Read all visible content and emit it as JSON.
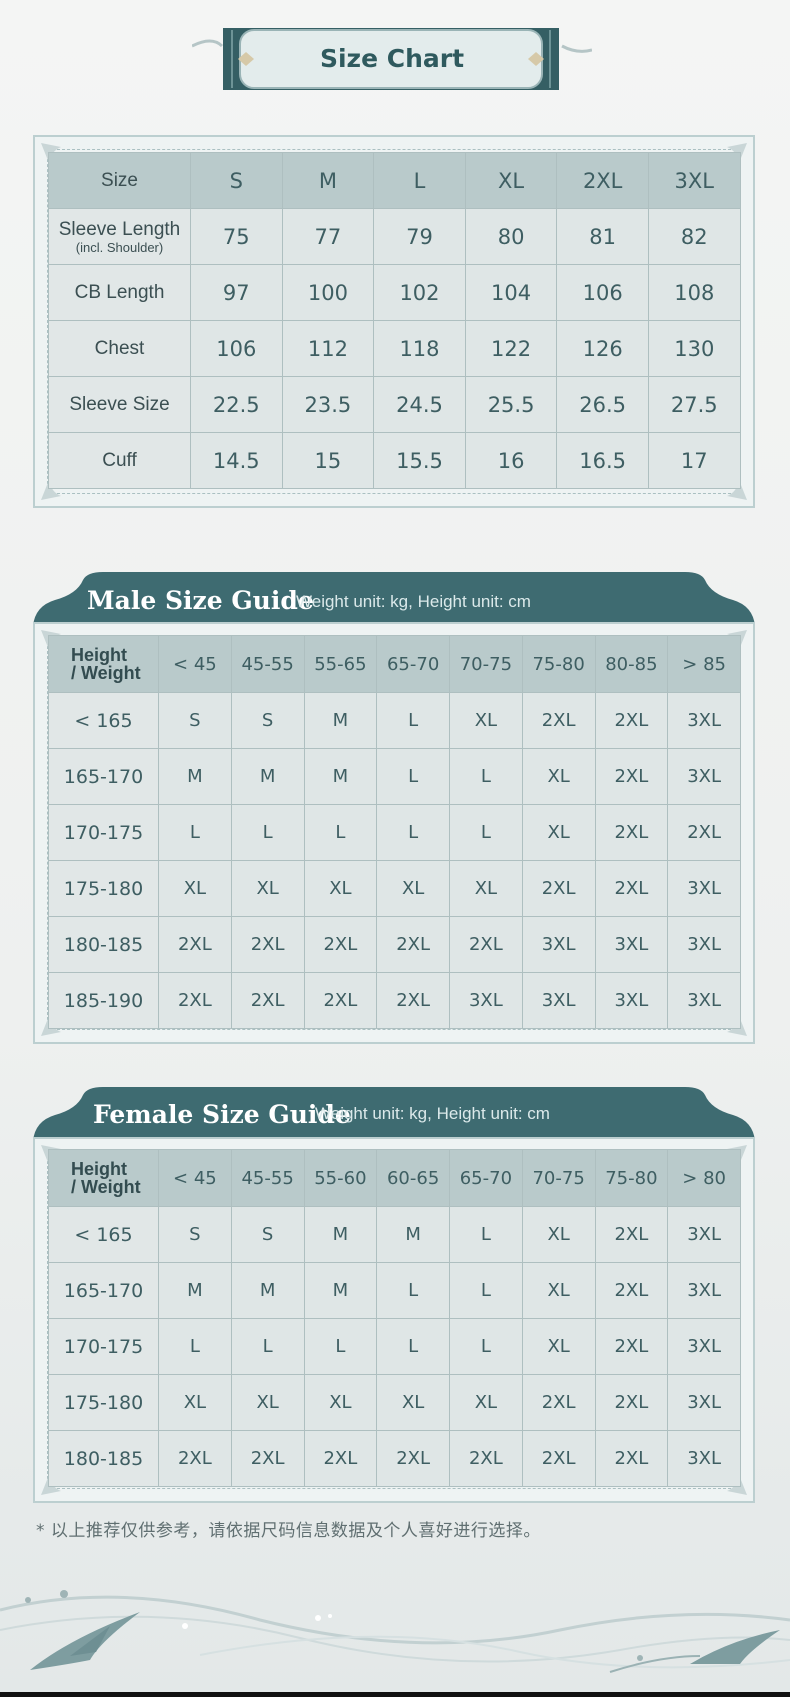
{
  "size_chart": {
    "title": "Size Chart",
    "header_label": "Size",
    "sizes": [
      "S",
      "M",
      "L",
      "XL",
      "2XL",
      "3XL"
    ],
    "rows": [
      {
        "label": "Sleeve Length",
        "note": "(incl. Shoulder)",
        "values": [
          "75",
          "77",
          "79",
          "80",
          "81",
          "82"
        ]
      },
      {
        "label": "CB Length",
        "values": [
          "97",
          "100",
          "102",
          "104",
          "106",
          "108"
        ]
      },
      {
        "label": "Chest",
        "values": [
          "106",
          "112",
          "118",
          "122",
          "126",
          "130"
        ]
      },
      {
        "label": "Sleeve Size",
        "values": [
          "22.5",
          "23.5",
          "24.5",
          "25.5",
          "26.5",
          "27.5"
        ]
      },
      {
        "label": "Cuff",
        "values": [
          "14.5",
          "15",
          "15.5",
          "16",
          "16.5",
          "17"
        ]
      }
    ]
  },
  "male_guide": {
    "title": "Male Size Guide",
    "subtitle": "Weight unit: kg, Height unit: cm",
    "corner_line1": "Height",
    "corner_line2": "/  Weight",
    "weights": [
      "< 45",
      "45-55",
      "55-65",
      "65-70",
      "70-75",
      "75-80",
      "80-85",
      "> 85"
    ],
    "rows": [
      {
        "height": "< 165",
        "values": [
          "S",
          "S",
          "M",
          "L",
          "XL",
          "2XL",
          "2XL",
          "3XL"
        ]
      },
      {
        "height": "165-170",
        "values": [
          "M",
          "M",
          "M",
          "L",
          "L",
          "XL",
          "2XL",
          "3XL"
        ]
      },
      {
        "height": "170-175",
        "values": [
          "L",
          "L",
          "L",
          "L",
          "L",
          "XL",
          "2XL",
          "2XL"
        ]
      },
      {
        "height": "175-180",
        "values": [
          "XL",
          "XL",
          "XL",
          "XL",
          "XL",
          "2XL",
          "2XL",
          "3XL"
        ]
      },
      {
        "height": "180-185",
        "values": [
          "2XL",
          "2XL",
          "2XL",
          "2XL",
          "2XL",
          "3XL",
          "3XL",
          "3XL"
        ]
      },
      {
        "height": "185-190",
        "values": [
          "2XL",
          "2XL",
          "2XL",
          "2XL",
          "3XL",
          "3XL",
          "3XL",
          "3XL"
        ]
      }
    ]
  },
  "female_guide": {
    "title": "Female Size Guide",
    "subtitle": "Weight unit: kg, Height unit: cm",
    "corner_line1": "Height",
    "corner_line2": "/  Weight",
    "weights": [
      "< 45",
      "45-55",
      "55-60",
      "60-65",
      "65-70",
      "70-75",
      "75-80",
      "> 80"
    ],
    "rows": [
      {
        "height": "< 165",
        "values": [
          "S",
          "S",
          "M",
          "M",
          "L",
          "XL",
          "2XL",
          "3XL"
        ]
      },
      {
        "height": "165-170",
        "values": [
          "M",
          "M",
          "M",
          "L",
          "L",
          "XL",
          "2XL",
          "3XL"
        ]
      },
      {
        "height": "170-175",
        "values": [
          "L",
          "L",
          "L",
          "L",
          "L",
          "XL",
          "2XL",
          "3XL"
        ]
      },
      {
        "height": "175-180",
        "values": [
          "XL",
          "XL",
          "XL",
          "XL",
          "XL",
          "2XL",
          "2XL",
          "3XL"
        ]
      },
      {
        "height": "180-185",
        "values": [
          "2XL",
          "2XL",
          "2XL",
          "2XL",
          "2XL",
          "2XL",
          "2XL",
          "3XL"
        ]
      }
    ]
  },
  "footnote": "* 以上推荐仅供参考，请依据尺码信息数据及个人喜好进行选择。",
  "colors": {
    "primary": "#3e6b71",
    "header_cell": "#b9cacb",
    "body_cell": "#dfe6e6"
  }
}
